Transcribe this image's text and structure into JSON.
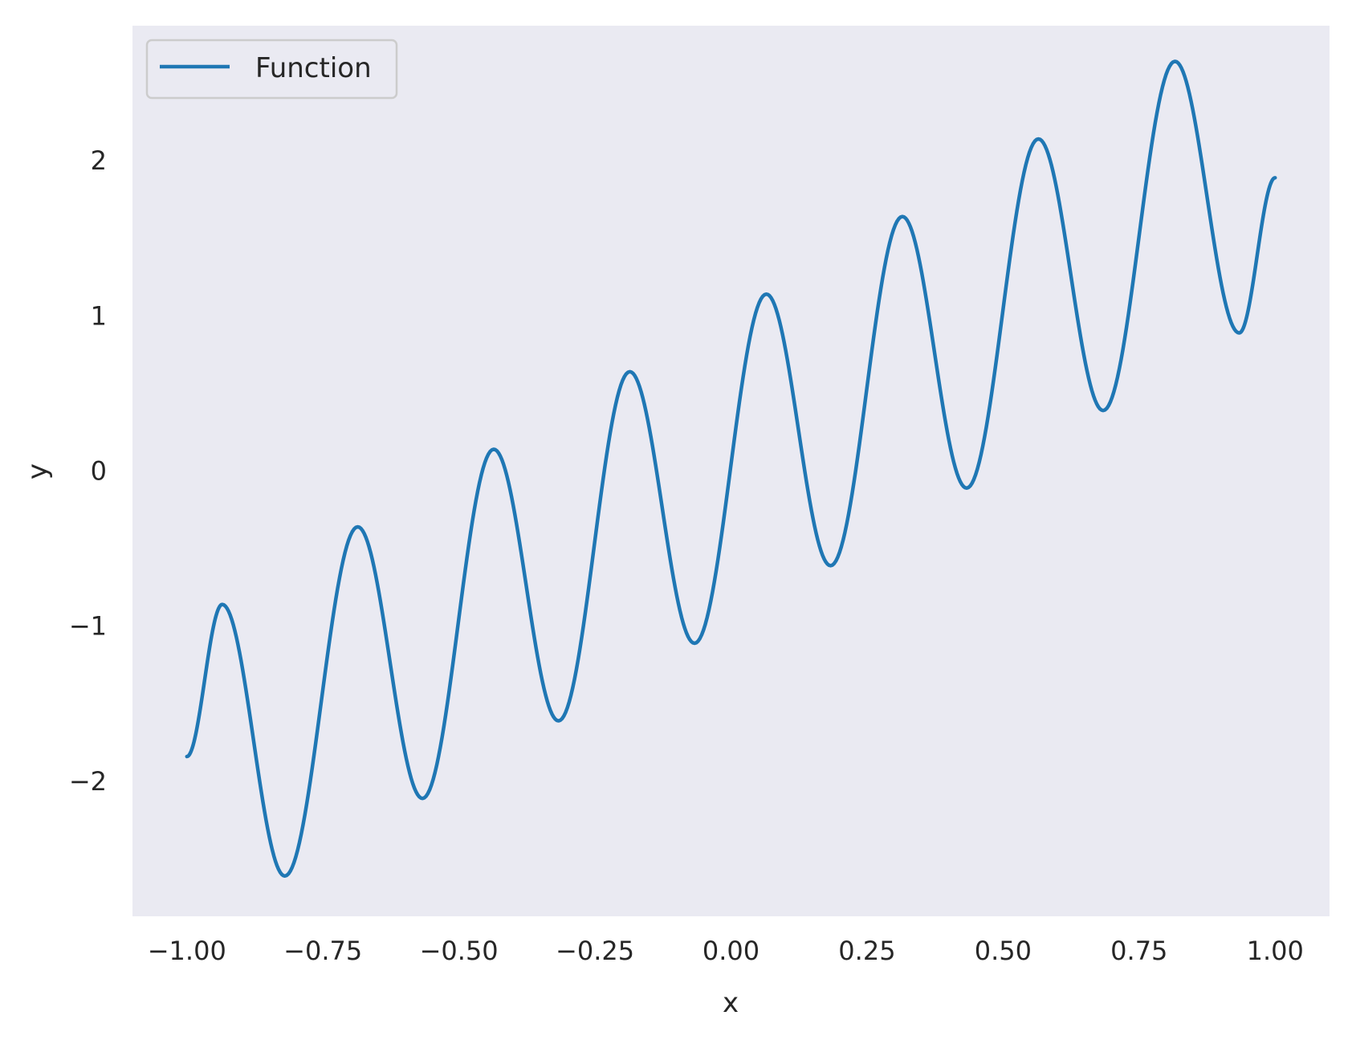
{
  "chart_data": {
    "type": "line",
    "title": "",
    "xlabel": "x",
    "ylabel": "y",
    "xlim": [
      -1.1,
      1.1
    ],
    "ylim": [
      -2.87,
      2.87
    ],
    "grid": false,
    "legend_position": "top-left",
    "xticks": [
      "−1.00",
      "−0.75",
      "−0.50",
      "−0.25",
      "0.00",
      "0.25",
      "0.50",
      "0.75",
      "1.00"
    ],
    "xtick_values": [
      -1.0,
      -0.75,
      -0.5,
      -0.25,
      0.0,
      0.25,
      0.5,
      0.75,
      1.0
    ],
    "yticks": [
      "−2",
      "−1",
      "0",
      "1",
      "2"
    ],
    "ytick_values": [
      -2,
      -1,
      0,
      1,
      2
    ],
    "colors": {
      "background": "#eaeaf2",
      "series": "#1f77b4"
    },
    "series": [
      {
        "name": "Function",
        "x": [
          -1.0,
          -0.935,
          -0.82,
          -0.686,
          -0.567,
          -0.436,
          -0.317,
          -0.186,
          -0.067,
          0.065,
          0.183,
          0.315,
          0.433,
          0.565,
          0.684,
          0.816,
          0.934,
          1.0
        ],
        "y": [
          -1.84,
          -0.86,
          -2.61,
          -0.36,
          -2.11,
          0.14,
          -1.61,
          0.64,
          -1.11,
          1.14,
          -0.61,
          1.64,
          -0.11,
          2.14,
          0.39,
          2.64,
          0.89,
          1.89
        ]
      }
    ]
  }
}
